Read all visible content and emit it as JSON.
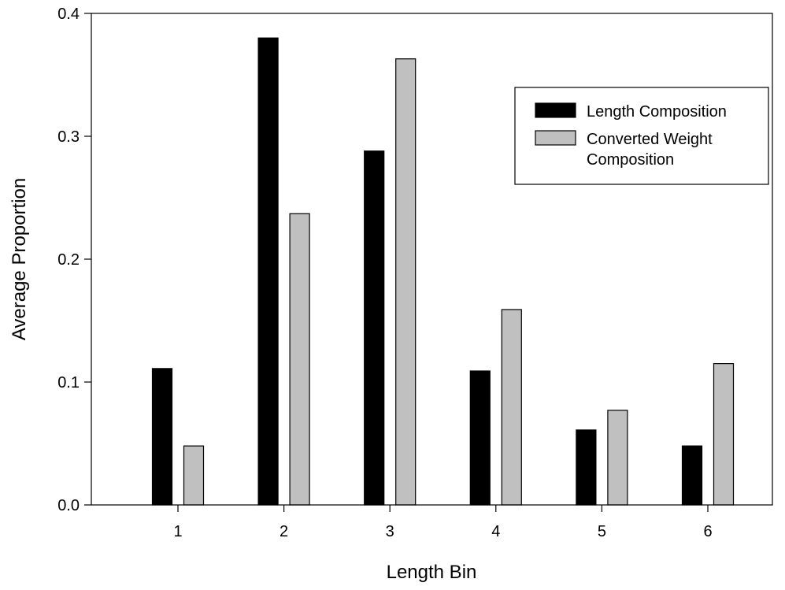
{
  "chart_data": {
    "type": "bar",
    "title": "",
    "xlabel": "Length Bin",
    "ylabel": "Average Proportion",
    "categories": [
      "1",
      "2",
      "3",
      "4",
      "5",
      "6"
    ],
    "ylim": [
      0,
      0.4
    ],
    "yticks": [
      "0.0",
      "0.1",
      "0.2",
      "0.3",
      "0.4"
    ],
    "grid": false,
    "legend_position": "top-right",
    "series": [
      {
        "name": "Length Composition",
        "color": "#000000",
        "values": [
          0.111,
          0.38,
          0.288,
          0.109,
          0.061,
          0.048
        ]
      },
      {
        "name": "Converted Weight Composition",
        "legend_lines": [
          "Converted Weight",
          "Composition"
        ],
        "color": "#c0c0c0",
        "values": [
          0.048,
          0.237,
          0.363,
          0.159,
          0.077,
          0.115
        ]
      }
    ]
  }
}
